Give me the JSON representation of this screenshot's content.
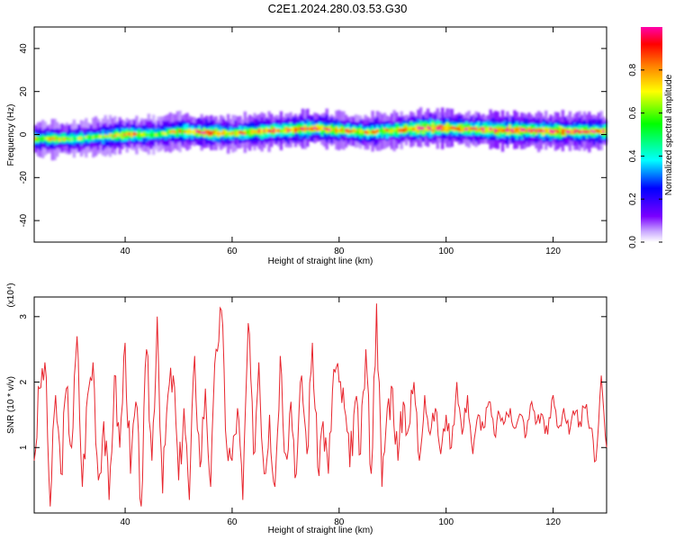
{
  "title": "C2E1.2024.280.03.53.G30",
  "chart_data": [
    {
      "type": "heatmap",
      "title": "C2E1.2024.280.03.53.G30",
      "xlabel": "Height of straight line (km)",
      "ylabel": "Frequency (Hz)",
      "xlim": [
        23,
        130
      ],
      "ylim": [
        -50,
        50
      ],
      "xticks": [
        40,
        60,
        80,
        100,
        120
      ],
      "yticks": [
        -40,
        -20,
        0,
        20,
        40
      ],
      "ytick_labels": [
        "-40",
        "-20",
        "0",
        "20",
        "40"
      ],
      "colorbar": {
        "label": "Normalized spectral amplitude",
        "range": [
          0,
          1
        ],
        "ticks": [
          0.0,
          0.2,
          0.4,
          0.6,
          0.8
        ],
        "tick_labels": [
          "0.0",
          "0.2",
          "0.4",
          "0.6",
          "0.8"
        ],
        "colormap": "rainbow (white-violet-blue-cyan-green-yellow-orange-red-magenta)"
      },
      "ridge": {
        "x": [
          23,
          30,
          35,
          40,
          45,
          50,
          55,
          60,
          65,
          70,
          75,
          80,
          85,
          90,
          95,
          100,
          105,
          110,
          115,
          120,
          125,
          130
        ],
        "frequency": [
          -2,
          -2,
          -1,
          0,
          0,
          1.5,
          1,
          0.5,
          1.5,
          2,
          3,
          2,
          1,
          2,
          3,
          3,
          2.5,
          2,
          2,
          1.5,
          1.5,
          1.5
        ],
        "peak_amplitude": [
          0.7,
          0.6,
          0.6,
          0.8,
          0.6,
          0.7,
          0.9,
          0.7,
          0.8,
          0.8,
          0.9,
          0.8,
          0.7,
          0.8,
          0.9,
          0.9,
          0.8,
          0.95,
          0.95,
          0.9,
          0.85,
          0.8
        ]
      }
    },
    {
      "type": "line",
      "xlabel": "Height of straight line (km)",
      "ylabel": "SNR (10 * v/v)",
      "y_multiplier": "(x10⁴)",
      "xlim": [
        23,
        130
      ],
      "ylim": [
        0,
        3.3
      ],
      "xticks": [
        40,
        60,
        80,
        100,
        120
      ],
      "yticks": [
        1,
        2,
        3
      ],
      "color": "#e8262e",
      "series": [
        {
          "x": [
            23,
            24,
            25,
            26,
            27,
            28,
            29,
            30,
            31,
            32,
            33,
            34,
            35,
            36,
            37,
            38,
            39,
            40,
            41,
            42,
            43,
            44,
            45,
            46,
            47,
            48,
            49,
            50,
            51,
            52,
            53,
            54,
            55,
            56,
            57,
            58,
            59,
            60,
            61,
            62,
            63,
            64,
            65,
            66,
            67,
            68,
            69,
            70,
            71,
            72,
            73,
            74,
            75,
            76,
            77,
            78,
            79,
            80,
            81,
            82,
            83,
            84,
            85,
            86,
            87,
            88,
            89,
            90,
            91,
            92,
            93,
            94,
            95,
            96,
            97,
            98,
            99,
            100,
            101,
            102,
            103,
            104,
            105,
            106,
            107,
            108,
            109,
            110,
            111,
            112,
            113,
            114,
            115,
            116,
            117,
            118,
            119,
            120,
            121,
            122,
            123,
            124,
            125,
            126,
            127,
            128,
            129,
            130
          ],
          "values": [
            0.8,
            1.9,
            2.3,
            0.1,
            1.8,
            0.6,
            1.9,
            1.0,
            2.7,
            0.4,
            1.8,
            2.3,
            0.5,
            1.4,
            0.2,
            2.1,
            1.0,
            2.6,
            0.6,
            1.7,
            0.1,
            2.5,
            0.8,
            3.0,
            0.3,
            1.8,
            2.1,
            0.5,
            1.6,
            0.2,
            2.4,
            0.7,
            1.9,
            0.4,
            2.5,
            3.1,
            1.0,
            0.8,
            1.6,
            0.2,
            2.9,
            0.9,
            2.3,
            0.6,
            1.5,
            0.4,
            2.4,
            0.9,
            1.7,
            0.6,
            2.1,
            0.9,
            2.6,
            0.7,
            1.4,
            0.6,
            2.2,
            2.0,
            1.6,
            0.7,
            1.7,
            0.9,
            2.5,
            0.6,
            3.2,
            0.4,
            1.6,
            1.9,
            0.8,
            1.7,
            1.3,
            2.0,
            0.8,
            1.8,
            1.2,
            1.6,
            0.9,
            1.5,
            1.0,
            2.0,
            1.2,
            1.8,
            0.9,
            1.5,
            1.3,
            1.7,
            1.2,
            1.5,
            1.4,
            1.6,
            1.3,
            1.5,
            1.2,
            1.7,
            1.4,
            1.5,
            1.2,
            1.8,
            1.3,
            1.6,
            1.2,
            1.5,
            1.4,
            1.6,
            1.3,
            0.8,
            2.1,
            1.0
          ]
        }
      ]
    }
  ]
}
